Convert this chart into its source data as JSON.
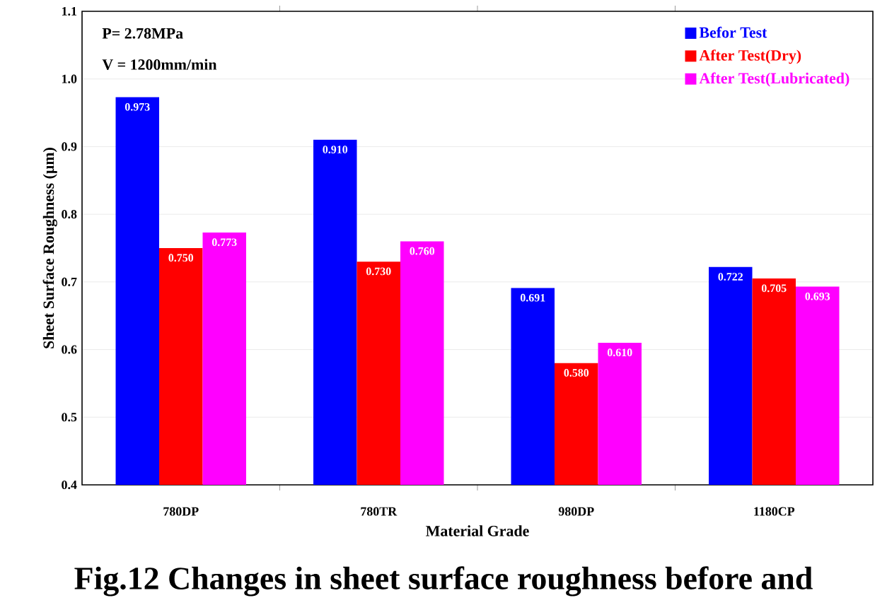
{
  "chart_data": {
    "type": "bar",
    "title": "Fig.12 Changes in sheet surface roughness before and",
    "xlabel": "Material Grade",
    "ylabel": "Sheet Surface Roughness (μm)",
    "categories": [
      "780DP",
      "780TR",
      "980DP",
      "1180CP"
    ],
    "series": [
      {
        "name": "Befor Test",
        "color": "#0000ff",
        "values": [
          0.973,
          0.91,
          0.691,
          0.722
        ],
        "value_labels": [
          "0.973",
          "0.910",
          "0.691",
          "0.722"
        ]
      },
      {
        "name": "After Test(Dry)",
        "color": "#ff0000",
        "values": [
          0.75,
          0.73,
          0.58,
          0.705
        ],
        "value_labels": [
          "0.750",
          "0.730",
          "0.580",
          "0.705"
        ]
      },
      {
        "name": "After Test(Lubricated)",
        "color": "#ff00ff",
        "values": [
          0.773,
          0.76,
          0.61,
          0.693
        ],
        "value_labels": [
          "0.773",
          "0.760",
          "0.610",
          "0.693"
        ]
      }
    ],
    "annotations": [
      "P= 2.78MPa",
      "V = 1200mm/min"
    ],
    "ylim": [
      0.4,
      1.1
    ],
    "yticks": [
      0.4,
      0.5,
      0.6,
      0.7,
      0.8,
      0.9,
      {
        "value": 1.0,
        "label": "1.0"
      },
      1.1
    ],
    "grid": "y",
    "legend": "top right"
  }
}
